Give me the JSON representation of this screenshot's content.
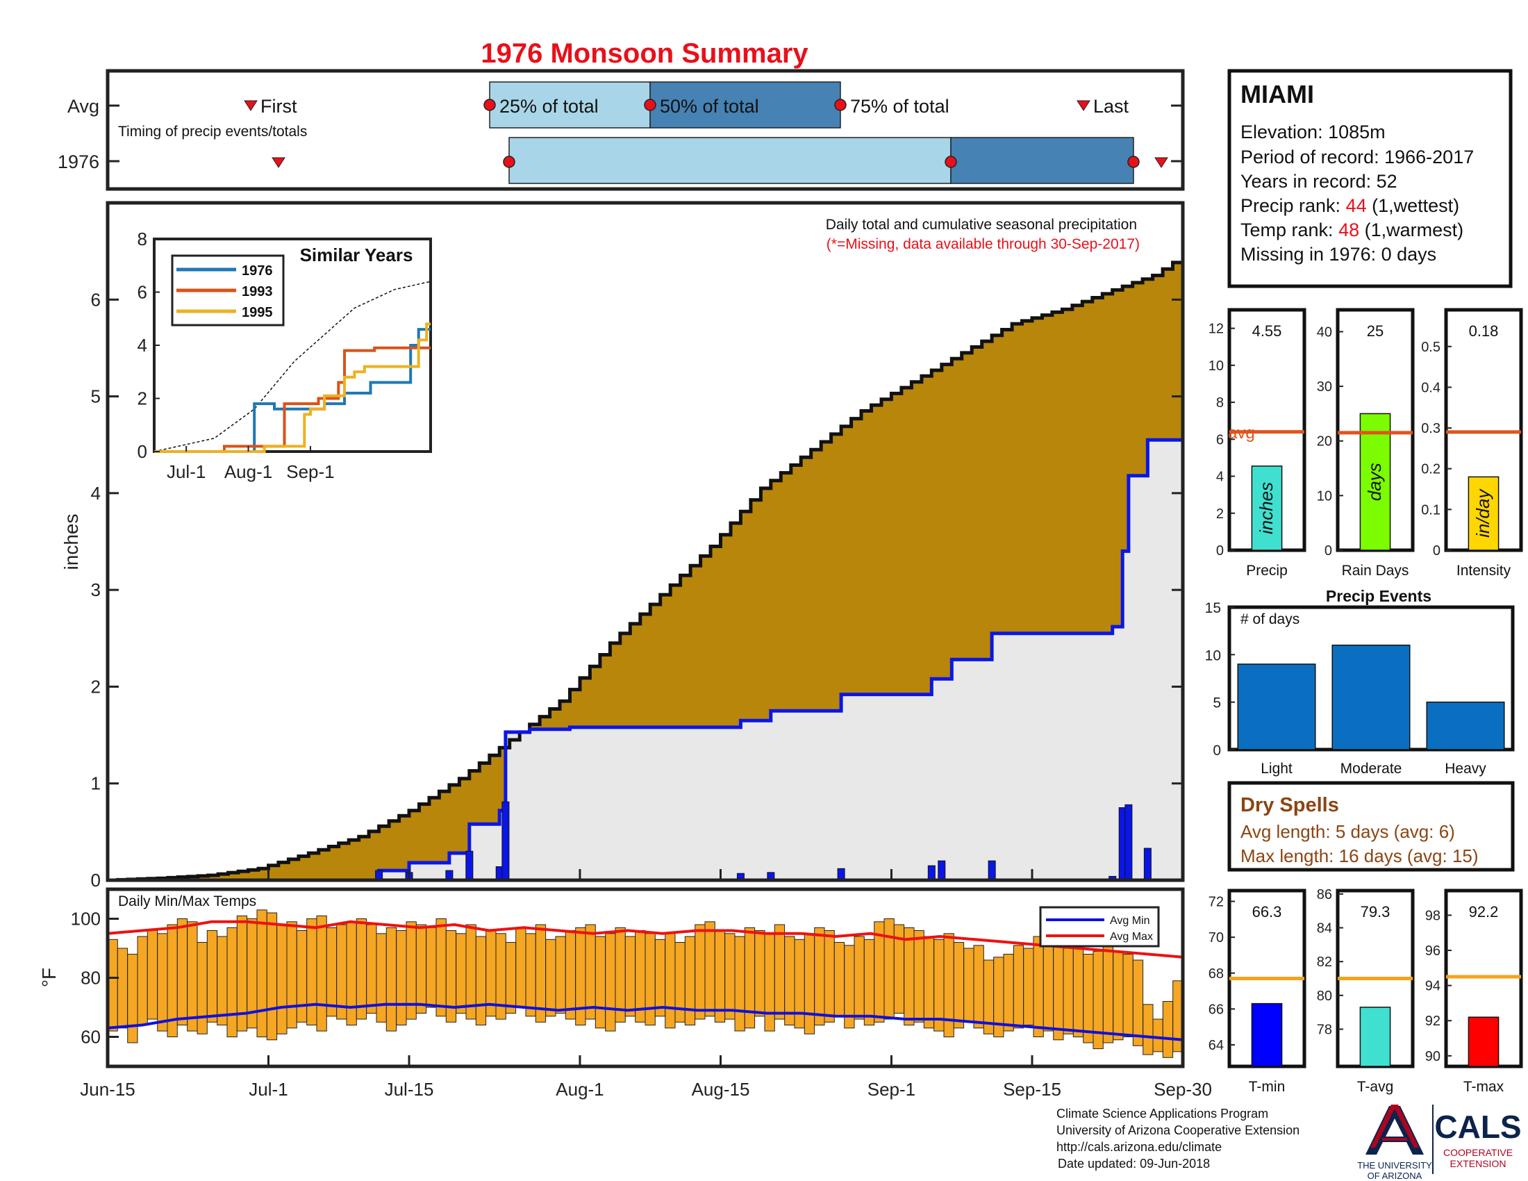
{
  "title": "1976 Monsoon Summary",
  "timing": {
    "avg_label": "Avg",
    "year_label": "1976",
    "note": "Timing of precip events/totals",
    "first_label": "First",
    "last_label": "Last",
    "q25_label": "25% of total",
    "q50_label": "50% of total",
    "q75_label": "75% of total",
    "avg_dates": {
      "first": "Jul-2",
      "q25": "Jul-22",
      "q50": "Aug-6",
      "q75": "Aug-24",
      "last": "Sep-22"
    },
    "year_dates": {
      "first": "Jul-2",
      "q25": "Jul-24",
      "q50": "Sep-4",
      "q75": "Sep-21",
      "last": "Sep-24"
    }
  },
  "station": {
    "name": "MIAMI",
    "elevation": "Elevation: 1085m",
    "period": "Period of record: 1966-2017",
    "years": "Years in record: 52",
    "precip_rank_label": "Precip rank: ",
    "precip_rank_value": "44",
    "precip_rank_suffix": " (1,wettest)",
    "temp_rank_label": "Temp rank: ",
    "temp_rank_value": "48",
    "temp_rank_suffix": " (1,warmest)",
    "missing": "Missing in 1976: 0 days"
  },
  "main_chart": {
    "note": "Daily total and cumulative seasonal precipitation",
    "missing_note": "(*=Missing, data available through 30-Sep-2017)",
    "ylabel": "inches",
    "y_ticks": [
      "0",
      "1",
      "2",
      "3",
      "4",
      "5",
      "6"
    ],
    "x_ticks": [
      "Jun-15",
      "Jul-1",
      "Jul-15",
      "Aug-1",
      "Aug-15",
      "Sep-1",
      "Sep-15",
      "Sep-30"
    ]
  },
  "similar_years": {
    "title": "Similar Years",
    "legend": [
      "1976",
      "1993",
      "1995"
    ],
    "y_ticks": [
      "0",
      "2",
      "4",
      "6",
      "8"
    ],
    "x_ticks": [
      "Jul-1",
      "Aug-1",
      "Sep-1"
    ]
  },
  "temp_chart": {
    "label": "Daily Min/Max Temps",
    "ylabel": "°F",
    "y_ticks": [
      "60",
      "80",
      "100"
    ],
    "legend_min": "Avg Min",
    "legend_max": "Avg Max"
  },
  "summary_bars": [
    {
      "label": "Precip",
      "unit": "inches",
      "value_text": "4.55",
      "avg_text": "avg",
      "y_ticks": [
        "0",
        "2",
        "4",
        "6",
        "8",
        "10",
        "12"
      ]
    },
    {
      "label": "Rain Days",
      "unit": "days",
      "value_text": "25",
      "y_ticks": [
        "0",
        "10",
        "20",
        "30",
        "40"
      ]
    },
    {
      "label": "Intensity",
      "unit": "in/day",
      "value_text": "0.18",
      "y_ticks": [
        "0",
        "0.1",
        "0.2",
        "0.3",
        "0.4",
        "0.5"
      ]
    }
  ],
  "precip_events": {
    "title": "Precip Events",
    "ylabel_note": "# of days",
    "y_ticks": [
      "0",
      "5",
      "10",
      "15"
    ],
    "categories": [
      "Light",
      "Moderate",
      "Heavy"
    ]
  },
  "dry_spells": {
    "title": "Dry Spells",
    "avg_length": "Avg length: 5 days (avg: 6)",
    "max_length": "Max length: 16 days (avg: 15)"
  },
  "temp_summary": [
    {
      "label": "T-min",
      "value_text": "66.3",
      "y_ticks": [
        "64",
        "66",
        "68",
        "70",
        "72"
      ]
    },
    {
      "label": "T-avg",
      "value_text": "79.3",
      "y_ticks": [
        "78",
        "80",
        "82",
        "84",
        "86"
      ]
    },
    {
      "label": "T-max",
      "value_text": "92.2",
      "y_ticks": [
        "90",
        "92",
        "94",
        "96",
        "98"
      ]
    }
  ],
  "footer": {
    "line1": "Climate Science Applications Program",
    "line2": "University of Arizona Cooperative Extension",
    "line3": "http://cals.arizona.edu/climate",
    "line4": "Date updated: 09-Jun-2018",
    "ua_logo_line1": "THE UNIVERSITY",
    "ua_logo_line2": "OF ARIZONA",
    "cals_logo": "CALS",
    "cals_sub1": "COOPERATIVE",
    "cals_sub2": "EXTENSION"
  },
  "colors": {
    "title": "#e8101a",
    "cumulative_fill": "#b8860b",
    "year_line": "#0a16e6",
    "year_fill": "#e8e8e8",
    "daily_bar": "#0a16e6",
    "light_band": "#a8d6e8",
    "dark_band": "#4682b4",
    "temp_bar": "#f5a623",
    "avg_max": "#ee1111",
    "avg_min": "#1010dd",
    "precip_avg_line": "#e0541c",
    "temp_avg_line": "#f5a21a",
    "event_bar": "#0a6fc0",
    "precip_bar": "#40e0d0",
    "raindays_bar": "#7cfc00",
    "intensity_bar": "#ffd700",
    "tmin_bar": "#0000ff",
    "tavg_bar": "#40e0d0",
    "tmax_bar": "#ff0000",
    "dry_text": "#8b4513",
    "rank_value": "#e8101a"
  },
  "chart_data": [
    {
      "type": "area",
      "name": "cumulative_precip",
      "x_domain_days": [
        0,
        107
      ],
      "ylim": [
        0,
        7
      ],
      "series": [
        {
          "name": "avg",
          "points": [
            [
              0,
              0
            ],
            [
              5,
              0.02
            ],
            [
              10,
              0.05
            ],
            [
              15,
              0.12
            ],
            [
              20,
              0.28
            ],
            [
              25,
              0.45
            ],
            [
              30,
              0.72
            ],
            [
              35,
              1.05
            ],
            [
              40,
              1.45
            ],
            [
              45,
              1.85
            ],
            [
              50,
              2.45
            ],
            [
              55,
              2.95
            ],
            [
              60,
              3.45
            ],
            [
              65,
              4.05
            ],
            [
              70,
              4.45
            ],
            [
              75,
              4.85
            ],
            [
              80,
              5.15
            ],
            [
              85,
              5.45
            ],
            [
              90,
              5.75
            ],
            [
              95,
              5.9
            ],
            [
              100,
              6.1
            ],
            [
              104,
              6.25
            ],
            [
              107,
              6.45
            ]
          ]
        },
        {
          "name": "1976",
          "points": [
            [
              0,
              0
            ],
            [
              27,
              0
            ],
            [
              27,
              0.1
            ],
            [
              30,
              0.1
            ],
            [
              30,
              0.18
            ],
            [
              34,
              0.18
            ],
            [
              34,
              0.28
            ],
            [
              36,
              0.28
            ],
            [
              36,
              0.58
            ],
            [
              39,
              0.58
            ],
            [
              39,
              0.72
            ],
            [
              39.6,
              0.72
            ],
            [
              39.6,
              1.53
            ],
            [
              42,
              1.53
            ],
            [
              42,
              1.56
            ],
            [
              46,
              1.56
            ],
            [
              46,
              1.58
            ],
            [
              63,
              1.58
            ],
            [
              63,
              1.65
            ],
            [
              66,
              1.65
            ],
            [
              66,
              1.75
            ],
            [
              73,
              1.75
            ],
            [
              73,
              1.92
            ],
            [
              82,
              1.92
            ],
            [
              82,
              2.08
            ],
            [
              84,
              2.08
            ],
            [
              84,
              2.28
            ],
            [
              88,
              2.28
            ],
            [
              88,
              2.55
            ],
            [
              100,
              2.55
            ],
            [
              100,
              2.62
            ],
            [
              101,
              2.62
            ],
            [
              101,
              3.4
            ],
            [
              101.6,
              3.4
            ],
            [
              101.6,
              4.18
            ],
            [
              103.5,
              4.18
            ],
            [
              103.5,
              4.55
            ],
            [
              107,
              4.55
            ]
          ]
        }
      ]
    },
    {
      "type": "bar",
      "name": "daily_precip_1976",
      "ylim": [
        0,
        7
      ],
      "bars": [
        [
          27,
          0.1
        ],
        [
          30,
          0.08
        ],
        [
          34,
          0.1
        ],
        [
          36,
          0.3
        ],
        [
          39,
          0.14
        ],
        [
          39.6,
          0.81
        ],
        [
          63,
          0.07
        ],
        [
          66,
          0.08
        ],
        [
          73,
          0.12
        ],
        [
          82,
          0.15
        ],
        [
          83,
          0.2
        ],
        [
          88,
          0.2
        ],
        [
          100,
          0.04
        ],
        [
          101,
          0.75
        ],
        [
          101.6,
          0.78
        ],
        [
          103.5,
          0.33
        ]
      ]
    },
    {
      "type": "line",
      "name": "similar_years",
      "ylim": [
        0,
        8
      ],
      "x_ticks": [
        "Jul-1",
        "Aug-1",
        "Sep-1"
      ],
      "series": [
        {
          "name": "avg",
          "points": [
            [
              0,
              0
            ],
            [
              30,
              0.5
            ],
            [
              50,
              1.6
            ],
            [
              70,
              3.4
            ],
            [
              100,
              5.4
            ],
            [
              120,
              6.1
            ],
            [
              138,
              6.4
            ]
          ]
        },
        {
          "name": "1976",
          "points": [
            [
              0,
              0
            ],
            [
              50,
              0
            ],
            [
              50,
              1.8
            ],
            [
              60,
              1.8
            ],
            [
              60,
              1.6
            ],
            [
              85,
              1.6
            ],
            [
              85,
              1.8
            ],
            [
              95,
              1.8
            ],
            [
              95,
              2.2
            ],
            [
              108,
              2.2
            ],
            [
              108,
              2.6
            ],
            [
              128,
              2.6
            ],
            [
              128,
              4.0
            ],
            [
              132,
              4.0
            ],
            [
              132,
              4.6
            ],
            [
              138,
              4.6
            ]
          ]
        },
        {
          "name": "1993",
          "points": [
            [
              0,
              0
            ],
            [
              35,
              0
            ],
            [
              35,
              0.2
            ],
            [
              65,
              0.2
            ],
            [
              65,
              1.8
            ],
            [
              82,
              1.8
            ],
            [
              82,
              2.0
            ],
            [
              92,
              2.0
            ],
            [
              92,
              2.6
            ],
            [
              95,
              2.6
            ],
            [
              95,
              3.8
            ],
            [
              110,
              3.8
            ],
            [
              110,
              3.9
            ],
            [
              138,
              3.9
            ]
          ]
        },
        {
          "name": "1995",
          "points": [
            [
              0,
              0
            ],
            [
              55,
              0
            ],
            [
              55,
              0.2
            ],
            [
              75,
              0.2
            ],
            [
              75,
              1.4
            ],
            [
              78,
              1.4
            ],
            [
              78,
              1.6
            ],
            [
              85,
              1.6
            ],
            [
              85,
              2.1
            ],
            [
              95,
              2.1
            ],
            [
              95,
              2.8
            ],
            [
              100,
              2.8
            ],
            [
              100,
              3.0
            ],
            [
              105,
              3.0
            ],
            [
              105,
              3.2
            ],
            [
              132,
              3.2
            ],
            [
              132,
              4.2
            ],
            [
              136,
              4.2
            ],
            [
              136,
              4.8
            ],
            [
              138,
              4.8
            ]
          ]
        }
      ]
    },
    {
      "type": "bar",
      "name": "daily_temps",
      "ylim": [
        50,
        110
      ],
      "min_temps": [
        62,
        63,
        58,
        64,
        66,
        62,
        60,
        64,
        62,
        61,
        65,
        64,
        60,
        62,
        63,
        60,
        59,
        61,
        63,
        65,
        64,
        62,
        67,
        66,
        64,
        66,
        68,
        65,
        62,
        64,
        66,
        68,
        70,
        67,
        65,
        68,
        66,
        64,
        67,
        66,
        68,
        70,
        67,
        65,
        67,
        68,
        66,
        64,
        66,
        63,
        62,
        65,
        67,
        65,
        64,
        67,
        63,
        65,
        64,
        66,
        67,
        65,
        66,
        62,
        63,
        67,
        62,
        66,
        64,
        63,
        61,
        64,
        65,
        67,
        63,
        66,
        64,
        65,
        66,
        68,
        64,
        65,
        63,
        62,
        60,
        63,
        65,
        63,
        61,
        60,
        62,
        63,
        64,
        60,
        62,
        59,
        61,
        60,
        58,
        56,
        58,
        59,
        60,
        57,
        54,
        55,
        53,
        55
      ],
      "max_temps": [
        93,
        90,
        88,
        94,
        96,
        95,
        98,
        100,
        99,
        92,
        96,
        94,
        97,
        101,
        100,
        103,
        102,
        98,
        99,
        96,
        100,
        101,
        97,
        98,
        99,
        100,
        98,
        95,
        97,
        96,
        99,
        98,
        97,
        100,
        96,
        95,
        98,
        94,
        96,
        95,
        92,
        97,
        95,
        98,
        93,
        94,
        96,
        97,
        98,
        94,
        95,
        97,
        94,
        96,
        95,
        93,
        95,
        92,
        94,
        98,
        99,
        96,
        95,
        94,
        97,
        96,
        95,
        98,
        94,
        93,
        95,
        97,
        96,
        92,
        91,
        94,
        93,
        99,
        100,
        98,
        97,
        96,
        94,
        93,
        95,
        92,
        90,
        91,
        86,
        87,
        88,
        91,
        90,
        94,
        92,
        92,
        90,
        91,
        88,
        89,
        92,
        89,
        88,
        86,
        71,
        66,
        72,
        79
      ],
      "avg_min": [
        63,
        64,
        66,
        67,
        68,
        70,
        71,
        70,
        71,
        71,
        70,
        71,
        70,
        69,
        70,
        69,
        70,
        69,
        69,
        68,
        68,
        67,
        67,
        66,
        66,
        65,
        64,
        63,
        62,
        61,
        60,
        59
      ],
      "avg_max": [
        95,
        96,
        97,
        99,
        99,
        98,
        97,
        99,
        98,
        97,
        98,
        96,
        97,
        96,
        95,
        96,
        95,
        96,
        96,
        95,
        95,
        94,
        95,
        93,
        94,
        93,
        92,
        91,
        90,
        89,
        88,
        87
      ]
    },
    {
      "type": "bar",
      "name": "season_summary",
      "categories": [
        "Precip",
        "Rain Days",
        "Intensity"
      ],
      "values": [
        4.55,
        25,
        0.18
      ],
      "averages": [
        6.4,
        21.5,
        0.29
      ],
      "ylims": [
        [
          0,
          13
        ],
        [
          0,
          44
        ],
        [
          0,
          0.59
        ]
      ]
    },
    {
      "type": "bar",
      "name": "precip_events",
      "categories": [
        "Light",
        "Moderate",
        "Heavy"
      ],
      "values": [
        9,
        11,
        5
      ],
      "ylim": [
        0,
        15
      ]
    },
    {
      "type": "bar",
      "name": "temp_summary",
      "categories": [
        "T-min",
        "T-avg",
        "T-max"
      ],
      "values": [
        66.3,
        79.3,
        92.2
      ],
      "averages": [
        67.7,
        81.0,
        94.5
      ],
      "ylims": [
        [
          62.8,
          72.6
        ],
        [
          75.8,
          86.2
        ],
        [
          89.4,
          99.4
        ]
      ]
    }
  ]
}
